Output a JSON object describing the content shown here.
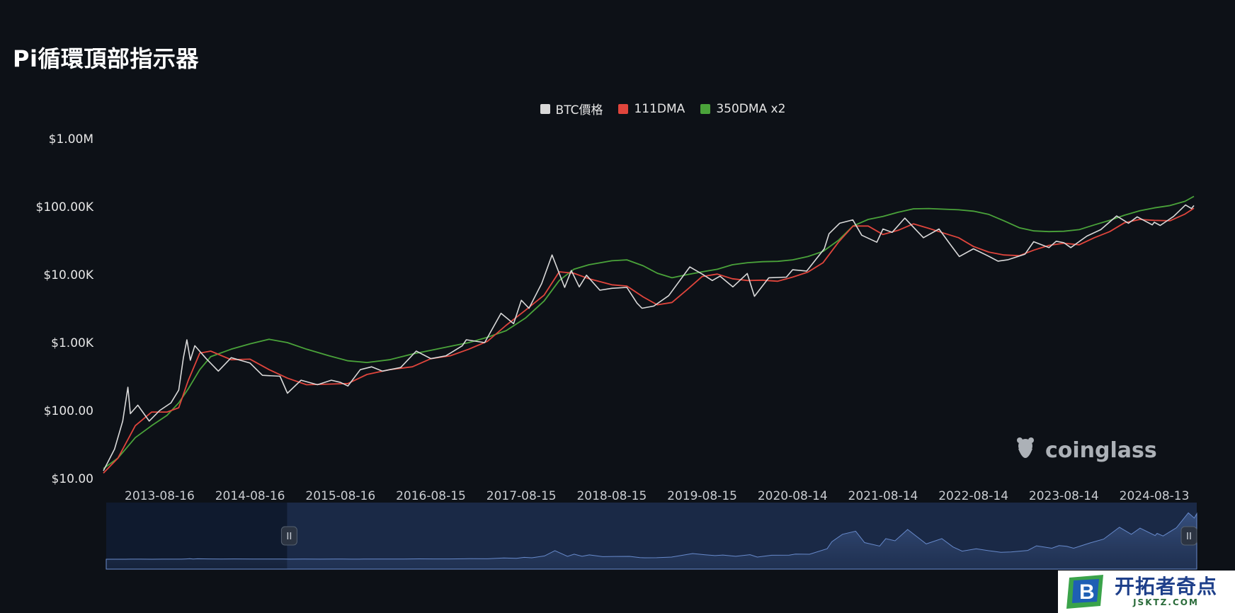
{
  "page": {
    "title": "Pi循環頂部指示器"
  },
  "legend": [
    {
      "label": "BTC價格",
      "color": "#d9d9d9"
    },
    {
      "label": "111DMA",
      "color": "#e0453c"
    },
    {
      "label": "350DMA x2",
      "color": "#4aa33a"
    }
  ],
  "watermark": {
    "text": "coinglass"
  },
  "badge": {
    "main": "开拓者奇点",
    "sub": "JSKTZ.COM"
  },
  "chart_data": {
    "type": "line",
    "title": "Pi循環頂部指示器",
    "xlabel": "",
    "ylabel": "",
    "y_scale": "log",
    "ylim": [
      10,
      1000000
    ],
    "y_ticks": [
      "$10.00",
      "$100.00",
      "$1.00K",
      "$10.00K",
      "$100.00K",
      "$1.00M"
    ],
    "x_ticks": [
      "2013-08-16",
      "2014-08-16",
      "2015-08-16",
      "2016-08-15",
      "2017-08-15",
      "2018-08-15",
      "2019-08-15",
      "2020-08-14",
      "2021-08-14",
      "2022-08-14",
      "2023-08-14",
      "2024-08-13"
    ],
    "xlim": [
      "2013-01-01",
      "2025-01-20"
    ],
    "legend_position": "top-center",
    "grid": false,
    "series": [
      {
        "name": "BTC價格",
        "color": "#d9d9d9",
        "points": [
          [
            "2013-01-01",
            13
          ],
          [
            "2013-02-15",
            27
          ],
          [
            "2013-03-20",
            70
          ],
          [
            "2013-04-10",
            220
          ],
          [
            "2013-04-20",
            90
          ],
          [
            "2013-05-20",
            120
          ],
          [
            "2013-07-05",
            70
          ],
          [
            "2013-08-16",
            100
          ],
          [
            "2013-10-01",
            130
          ],
          [
            "2013-11-01",
            200
          ],
          [
            "2013-11-20",
            600
          ],
          [
            "2013-12-04",
            1100
          ],
          [
            "2013-12-18",
            550
          ],
          [
            "2014-01-05",
            900
          ],
          [
            "2014-02-20",
            580
          ],
          [
            "2014-04-10",
            380
          ],
          [
            "2014-06-01",
            600
          ],
          [
            "2014-08-16",
            500
          ],
          [
            "2014-10-05",
            330
          ],
          [
            "2014-12-15",
            320
          ],
          [
            "2015-01-14",
            180
          ],
          [
            "2015-03-10",
            280
          ],
          [
            "2015-05-15",
            240
          ],
          [
            "2015-07-10",
            280
          ],
          [
            "2015-08-16",
            260
          ],
          [
            "2015-09-15",
            230
          ],
          [
            "2015-11-04",
            400
          ],
          [
            "2015-12-20",
            440
          ],
          [
            "2016-02-01",
            380
          ],
          [
            "2016-04-15",
            430
          ],
          [
            "2016-06-17",
            750
          ],
          [
            "2016-08-15",
            580
          ],
          [
            "2016-10-15",
            640
          ],
          [
            "2016-12-20",
            900
          ],
          [
            "2017-01-05",
            1100
          ],
          [
            "2017-03-20",
            1000
          ],
          [
            "2017-05-25",
            2700
          ],
          [
            "2017-07-15",
            1900
          ],
          [
            "2017-08-15",
            4200
          ],
          [
            "2017-09-15",
            3200
          ],
          [
            "2017-11-05",
            7400
          ],
          [
            "2017-12-17",
            19500
          ],
          [
            "2018-02-06",
            6500
          ],
          [
            "2018-03-05",
            11500
          ],
          [
            "2018-04-06",
            6600
          ],
          [
            "2018-05-05",
            9800
          ],
          [
            "2018-06-28",
            5900
          ],
          [
            "2018-08-15",
            6300
          ],
          [
            "2018-10-15",
            6500
          ],
          [
            "2018-11-25",
            3800
          ],
          [
            "2018-12-15",
            3200
          ],
          [
            "2019-02-01",
            3450
          ],
          [
            "2019-04-02",
            4900
          ],
          [
            "2019-06-26",
            13000
          ],
          [
            "2019-08-15",
            10200
          ],
          [
            "2019-09-25",
            8200
          ],
          [
            "2019-10-26",
            9500
          ],
          [
            "2019-12-17",
            6600
          ],
          [
            "2020-02-13",
            10400
          ],
          [
            "2020-03-13",
            4800
          ],
          [
            "2020-05-10",
            9000
          ],
          [
            "2020-07-20",
            9200
          ],
          [
            "2020-08-14",
            11800
          ],
          [
            "2020-10-10",
            11300
          ],
          [
            "2020-12-20",
            24000
          ],
          [
            "2021-01-08",
            40000
          ],
          [
            "2021-02-20",
            57000
          ],
          [
            "2021-04-14",
            64000
          ],
          [
            "2021-05-20",
            38000
          ],
          [
            "2021-07-20",
            30000
          ],
          [
            "2021-08-14",
            47000
          ],
          [
            "2021-09-20",
            42000
          ],
          [
            "2021-11-10",
            68000
          ],
          [
            "2022-01-24",
            35000
          ],
          [
            "2022-03-28",
            47000
          ],
          [
            "2022-05-12",
            28000
          ],
          [
            "2022-06-18",
            18500
          ],
          [
            "2022-08-14",
            24000
          ],
          [
            "2022-10-10",
            19000
          ],
          [
            "2022-11-21",
            15800
          ],
          [
            "2023-01-01",
            16600
          ],
          [
            "2023-03-10",
            20000
          ],
          [
            "2023-04-14",
            30500
          ],
          [
            "2023-06-15",
            25000
          ],
          [
            "2023-07-14",
            31000
          ],
          [
            "2023-08-14",
            29500
          ],
          [
            "2023-09-11",
            25000
          ],
          [
            "2023-11-15",
            37000
          ],
          [
            "2024-01-10",
            46000
          ],
          [
            "2024-03-14",
            73000
          ],
          [
            "2024-05-01",
            57000
          ],
          [
            "2024-06-05",
            71000
          ],
          [
            "2024-08-05",
            54000
          ],
          [
            "2024-08-13",
            59000
          ],
          [
            "2024-09-06",
            53000
          ],
          [
            "2024-10-30",
            72000
          ],
          [
            "2024-12-17",
            106000
          ],
          [
            "2025-01-10",
            94000
          ],
          [
            "2025-01-20",
            104000
          ]
        ]
      },
      {
        "name": "111DMA",
        "color": "#e0453c",
        "points": [
          [
            "2013-01-01",
            12
          ],
          [
            "2013-03-01",
            20
          ],
          [
            "2013-05-10",
            60
          ],
          [
            "2013-07-15",
            95
          ],
          [
            "2013-09-15",
            95
          ],
          [
            "2013-11-01",
            110
          ],
          [
            "2013-12-10",
            280
          ],
          [
            "2014-01-25",
            700
          ],
          [
            "2014-03-10",
            750
          ],
          [
            "2014-06-01",
            560
          ],
          [
            "2014-08-16",
            570
          ],
          [
            "2014-11-01",
            400
          ],
          [
            "2015-01-14",
            300
          ],
          [
            "2015-04-01",
            240
          ],
          [
            "2015-07-01",
            245
          ],
          [
            "2015-09-15",
            250
          ],
          [
            "2015-12-01",
            340
          ],
          [
            "2016-03-01",
            400
          ],
          [
            "2016-06-01",
            440
          ],
          [
            "2016-08-15",
            580
          ],
          [
            "2016-11-01",
            640
          ],
          [
            "2017-01-15",
            800
          ],
          [
            "2017-04-01",
            1050
          ],
          [
            "2017-06-15",
            1800
          ],
          [
            "2017-09-01",
            3000
          ],
          [
            "2017-11-15",
            5000
          ],
          [
            "2018-01-15",
            11000
          ],
          [
            "2018-03-15",
            10500
          ],
          [
            "2018-05-15",
            8700
          ],
          [
            "2018-08-15",
            7100
          ],
          [
            "2018-10-15",
            6800
          ],
          [
            "2018-12-20",
            4700
          ],
          [
            "2019-02-15",
            3600
          ],
          [
            "2019-04-15",
            3900
          ],
          [
            "2019-06-15",
            6000
          ],
          [
            "2019-08-15",
            9400
          ],
          [
            "2019-10-15",
            10200
          ],
          [
            "2019-12-15",
            8700
          ],
          [
            "2020-02-15",
            8200
          ],
          [
            "2020-04-15",
            8300
          ],
          [
            "2020-06-15",
            8000
          ],
          [
            "2020-08-14",
            9200
          ],
          [
            "2020-10-15",
            10900
          ],
          [
            "2020-12-15",
            15000
          ],
          [
            "2021-02-15",
            30000
          ],
          [
            "2021-04-15",
            52000
          ],
          [
            "2021-06-15",
            52000
          ],
          [
            "2021-08-14",
            39000
          ],
          [
            "2021-10-15",
            45000
          ],
          [
            "2021-12-15",
            56000
          ],
          [
            "2022-02-15",
            48000
          ],
          [
            "2022-04-15",
            41000
          ],
          [
            "2022-06-15",
            35000
          ],
          [
            "2022-08-14",
            26000
          ],
          [
            "2022-10-15",
            21500
          ],
          [
            "2022-12-15",
            19500
          ],
          [
            "2023-02-15",
            19000
          ],
          [
            "2023-04-15",
            23000
          ],
          [
            "2023-06-15",
            27000
          ],
          [
            "2023-08-14",
            29000
          ],
          [
            "2023-10-15",
            27500
          ],
          [
            "2023-12-15",
            35000
          ],
          [
            "2024-02-15",
            43000
          ],
          [
            "2024-04-15",
            58000
          ],
          [
            "2024-06-15",
            65000
          ],
          [
            "2024-08-13",
            63000
          ],
          [
            "2024-10-15",
            62000
          ],
          [
            "2024-12-15",
            78000
          ],
          [
            "2025-01-20",
            95000
          ]
        ]
      },
      {
        "name": "350DMA x2",
        "color": "#4aa33a",
        "points": [
          [
            "2013-01-01",
            14
          ],
          [
            "2013-03-01",
            20
          ],
          [
            "2013-05-10",
            40
          ],
          [
            "2013-07-15",
            60
          ],
          [
            "2013-09-15",
            85
          ],
          [
            "2013-11-01",
            130
          ],
          [
            "2013-12-10",
            210
          ],
          [
            "2014-01-25",
            400
          ],
          [
            "2014-03-10",
            620
          ],
          [
            "2014-06-01",
            800
          ],
          [
            "2014-08-16",
            960
          ],
          [
            "2014-11-01",
            1120
          ],
          [
            "2015-01-14",
            1000
          ],
          [
            "2015-04-01",
            800
          ],
          [
            "2015-07-01",
            640
          ],
          [
            "2015-09-15",
            540
          ],
          [
            "2015-12-01",
            510
          ],
          [
            "2016-03-01",
            560
          ],
          [
            "2016-06-01",
            680
          ],
          [
            "2016-08-15",
            770
          ],
          [
            "2016-11-01",
            880
          ],
          [
            "2017-01-15",
            1000
          ],
          [
            "2017-04-01",
            1200
          ],
          [
            "2017-06-15",
            1500
          ],
          [
            "2017-09-01",
            2300
          ],
          [
            "2017-11-15",
            4100
          ],
          [
            "2018-01-15",
            8200
          ],
          [
            "2018-03-15",
            12000
          ],
          [
            "2018-05-15",
            14000
          ],
          [
            "2018-08-15",
            16000
          ],
          [
            "2018-10-15",
            16500
          ],
          [
            "2018-12-20",
            13500
          ],
          [
            "2019-02-15",
            10500
          ],
          [
            "2019-04-15",
            9000
          ],
          [
            "2019-06-15",
            10000
          ],
          [
            "2019-08-15",
            11000
          ],
          [
            "2019-10-15",
            12000
          ],
          [
            "2019-12-15",
            14000
          ],
          [
            "2020-02-15",
            15000
          ],
          [
            "2020-04-15",
            15500
          ],
          [
            "2020-06-15",
            15700
          ],
          [
            "2020-08-14",
            16500
          ],
          [
            "2020-10-15",
            18500
          ],
          [
            "2020-12-15",
            22000
          ],
          [
            "2021-02-15",
            32000
          ],
          [
            "2021-04-15",
            52000
          ],
          [
            "2021-06-15",
            65000
          ],
          [
            "2021-08-14",
            72000
          ],
          [
            "2021-10-15",
            83000
          ],
          [
            "2021-12-15",
            93000
          ],
          [
            "2022-02-15",
            94000
          ],
          [
            "2022-04-15",
            92000
          ],
          [
            "2022-06-15",
            90000
          ],
          [
            "2022-08-14",
            86000
          ],
          [
            "2022-10-15",
            77000
          ],
          [
            "2022-12-15",
            62000
          ],
          [
            "2023-02-15",
            49000
          ],
          [
            "2023-04-15",
            44000
          ],
          [
            "2023-06-15",
            43000
          ],
          [
            "2023-08-14",
            43500
          ],
          [
            "2023-10-15",
            46000
          ],
          [
            "2023-12-15",
            54000
          ],
          [
            "2024-02-15",
            63000
          ],
          [
            "2024-04-15",
            75000
          ],
          [
            "2024-06-15",
            87000
          ],
          [
            "2024-08-13",
            96000
          ],
          [
            "2024-10-15",
            104000
          ],
          [
            "2024-12-15",
            120000
          ],
          [
            "2025-01-20",
            142000
          ]
        ]
      }
    ],
    "navigator": {
      "series": "BTC價格",
      "range": [
        "2015-01-01",
        "2025-01-20"
      ]
    }
  }
}
